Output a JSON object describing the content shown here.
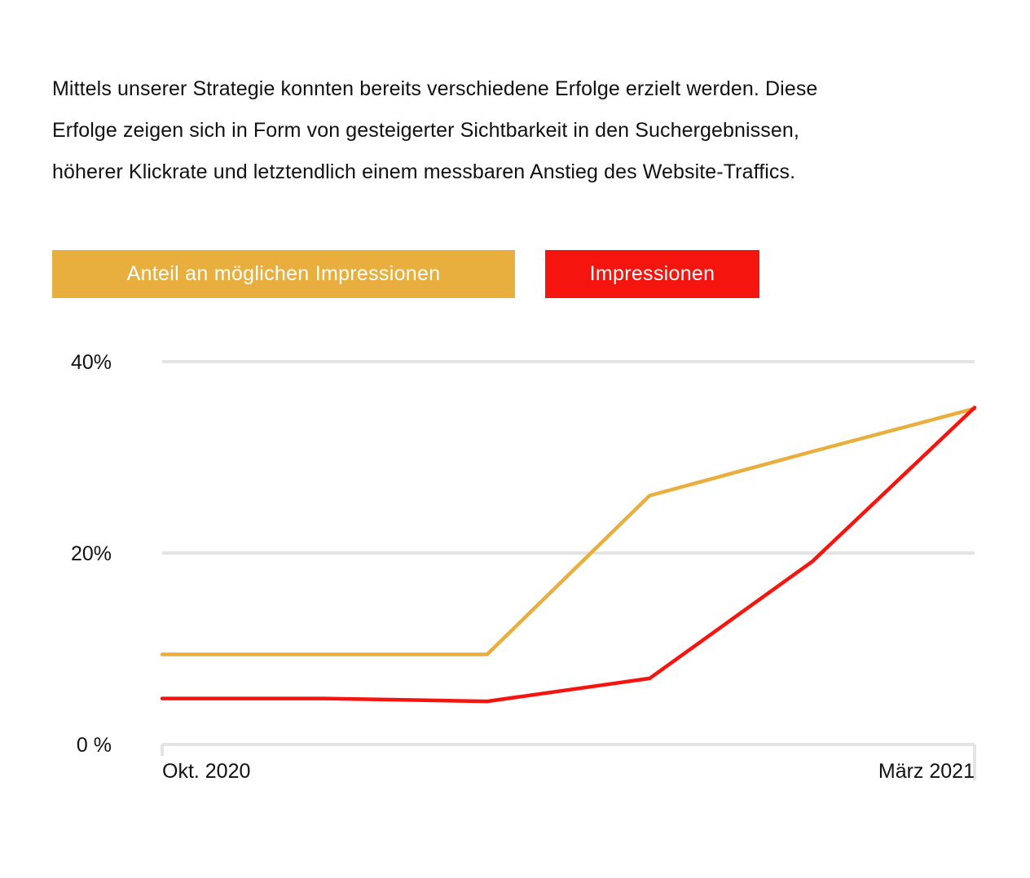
{
  "intro": {
    "line1": "Mittels unserer Strategie konnten bereits verschiedene Erfolge erzielt werden. Diese",
    "line2": "Erfolge zeigen sich in Form von gesteigerter Sichtbarkeit in den Suchergebnissen,",
    "line3": "höherer Klickrate und letztendlich einem messbaren Anstieg des Website-Traffics."
  },
  "colors": {
    "share": "#E8AE3E",
    "impressions": "#F5140E",
    "grid": "#E4E4E4",
    "text": "#111111"
  },
  "chart_data": {
    "type": "line",
    "x": [
      0,
      1,
      2,
      3,
      4,
      5
    ],
    "x_tick_labels": [
      {
        "x": 0,
        "label": "Okt. 2020"
      },
      {
        "x": 5,
        "label": "März 2021"
      }
    ],
    "xlim": [
      0,
      5
    ],
    "ylim": [
      0,
      40
    ],
    "y_ticks": [
      {
        "value": 0,
        "label": "0 %"
      },
      {
        "value": 20,
        "label": "20%"
      },
      {
        "value": 40,
        "label": "40%"
      }
    ],
    "grid": true,
    "legend_position": "top-left",
    "series": [
      {
        "name": "Anteil an möglichen Impressionen",
        "color": "#E8AE3E",
        "values": [
          9.4,
          9.4,
          9.4,
          26.0,
          30.6,
          35.1
        ]
      },
      {
        "name": "Impressionen",
        "color": "#F5140E",
        "values": [
          4.8,
          4.8,
          4.5,
          6.9,
          19.1,
          35.2
        ]
      }
    ],
    "title": "",
    "xlabel": "",
    "ylabel": ""
  }
}
